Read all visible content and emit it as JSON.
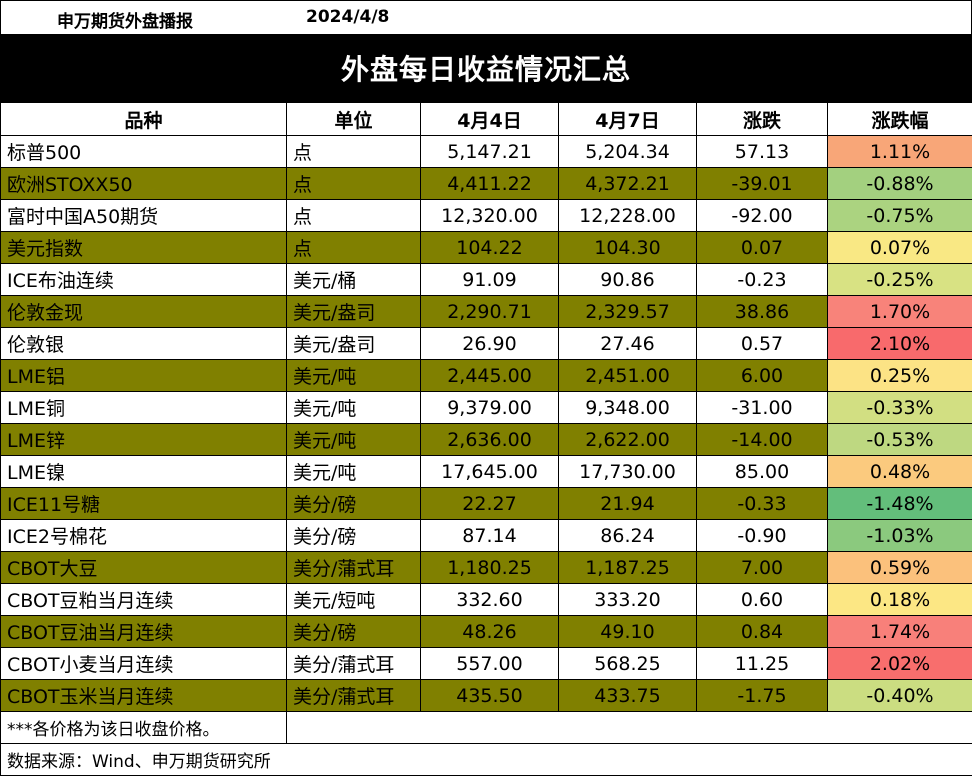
{
  "header": {
    "brand": "申万期货外盘播报",
    "date": "2024/4/8",
    "title": "外盘每日收益情况汇总"
  },
  "table": {
    "columns": [
      "品种",
      "单位",
      "4月4日",
      "4月7日",
      "涨跌",
      "涨跌幅"
    ],
    "rows": [
      {
        "name": "标普500",
        "unit": "点",
        "prev": "5,147.21",
        "curr": "5,204.34",
        "chg": "57.13",
        "pct": "1.11%",
        "color": "#F8A678"
      },
      {
        "name": "欧洲STOXX50",
        "unit": "点",
        "prev": "4,411.22",
        "curr": "4,372.21",
        "chg": "-39.01",
        "pct": "-0.88%",
        "color": "#A3D07F"
      },
      {
        "name": "富时中国A50期货",
        "unit": "点",
        "prev": "12,320.00",
        "curr": "12,228.00",
        "chg": "-92.00",
        "pct": "-0.75%",
        "color": "#ABD380"
      },
      {
        "name": "美元指数",
        "unit": "点",
        "prev": "104.22",
        "curr": "104.30",
        "chg": "0.07",
        "pct": "0.07%",
        "color": "#F9E884"
      },
      {
        "name": "ICE布油连续",
        "unit": "美元/桶",
        "prev": "91.09",
        "curr": "90.86",
        "chg": "-0.23",
        "pct": "-0.25%",
        "color": "#D8E283"
      },
      {
        "name": "伦敦金现",
        "unit": "美元/盎司",
        "prev": "2,290.71",
        "curr": "2,329.57",
        "chg": "38.86",
        "pct": "1.70%",
        "color": "#F8837A"
      },
      {
        "name": "伦敦银",
        "unit": "美元/盎司",
        "prev": "26.90",
        "curr": "27.46",
        "chg": "0.57",
        "pct": "2.10%",
        "color": "#F86A6C"
      },
      {
        "name": "LME铝",
        "unit": "美元/吨",
        "prev": "2,445.00",
        "curr": "2,451.00",
        "chg": "6.00",
        "pct": "0.25%",
        "color": "#FCE385"
      },
      {
        "name": "LME铜",
        "unit": "美元/吨",
        "prev": "9,379.00",
        "curr": "9,348.00",
        "chg": "-31.00",
        "pct": "-0.33%",
        "color": "#D2DF82"
      },
      {
        "name": "LME锌",
        "unit": "美元/吨",
        "prev": "2,636.00",
        "curr": "2,622.00",
        "chg": "-14.00",
        "pct": "-0.53%",
        "color": "#BED881"
      },
      {
        "name": "LME镍",
        "unit": "美元/吨",
        "prev": "17,645.00",
        "curr": "17,730.00",
        "chg": "85.00",
        "pct": "0.48%",
        "color": "#FBCA7E"
      },
      {
        "name": "ICE11号糖",
        "unit": "美分/磅",
        "prev": "22.27",
        "curr": "21.94",
        "chg": "-0.33",
        "pct": "-1.48%",
        "color": "#63BE7B"
      },
      {
        "name": "ICE2号棉花",
        "unit": "美分/磅",
        "prev": "87.14",
        "curr": "86.24",
        "chg": "-0.90",
        "pct": "-1.03%",
        "color": "#8BC97E"
      },
      {
        "name": "CBOT大豆",
        "unit": "美分/蒲式耳",
        "prev": "1,180.25",
        "curr": "1,187.25",
        "chg": "7.00",
        "pct": "0.59%",
        "color": "#FBC17C"
      },
      {
        "name": "CBOT豆粕当月连续",
        "unit": "美元/短吨",
        "prev": "332.60",
        "curr": "333.20",
        "chg": "0.60",
        "pct": "0.18%",
        "color": "#FCE784"
      },
      {
        "name": "CBOT豆油当月连续",
        "unit": "美分/磅",
        "prev": "48.26",
        "curr": "49.10",
        "chg": "0.84",
        "pct": "1.74%",
        "color": "#F8807A"
      },
      {
        "name": "CBOT小麦当月连续",
        "unit": "美分/蒲式耳",
        "prev": "557.00",
        "curr": "568.25",
        "chg": "11.25",
        "pct": "2.02%",
        "color": "#F86E6D"
      },
      {
        "name": "CBOT玉米当月连续",
        "unit": "美分/蒲式耳",
        "prev": "435.50",
        "curr": "433.75",
        "chg": "-1.75",
        "pct": "-0.40%",
        "color": "#CBDD81"
      }
    ]
  },
  "footer": {
    "note": "***各价格为该日收盘价格。",
    "source": "数据来源：Wind、申万期货研究所"
  }
}
